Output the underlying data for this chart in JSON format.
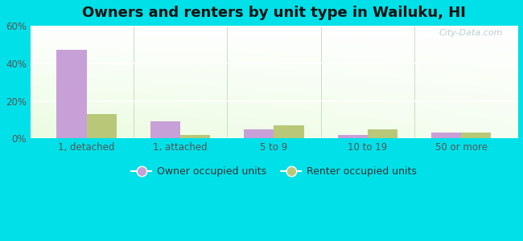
{
  "title": "Owners and renters by unit type in Wailuku, HI",
  "categories": [
    "1, detached",
    "1, attached",
    "5 to 9",
    "10 to 19",
    "50 or more"
  ],
  "owner_values": [
    47,
    9,
    5,
    2,
    3
  ],
  "renter_values": [
    13,
    2,
    7,
    5,
    3
  ],
  "owner_color": "#c8a0d8",
  "renter_color": "#b8c878",
  "ylim": [
    0,
    60
  ],
  "yticks": [
    0,
    20,
    40,
    60
  ],
  "ytick_labels": [
    "0%",
    "20%",
    "40%",
    "60%"
  ],
  "background_outer": "#00e0e8",
  "title_fontsize": 13,
  "watermark": "City-Data.com",
  "legend_owner": "Owner occupied units",
  "legend_renter": "Renter occupied units",
  "bar_width": 0.32,
  "grid_color": "#d8e8d0",
  "tick_color": "#555555",
  "axis_line_color": "#aaaaaa"
}
